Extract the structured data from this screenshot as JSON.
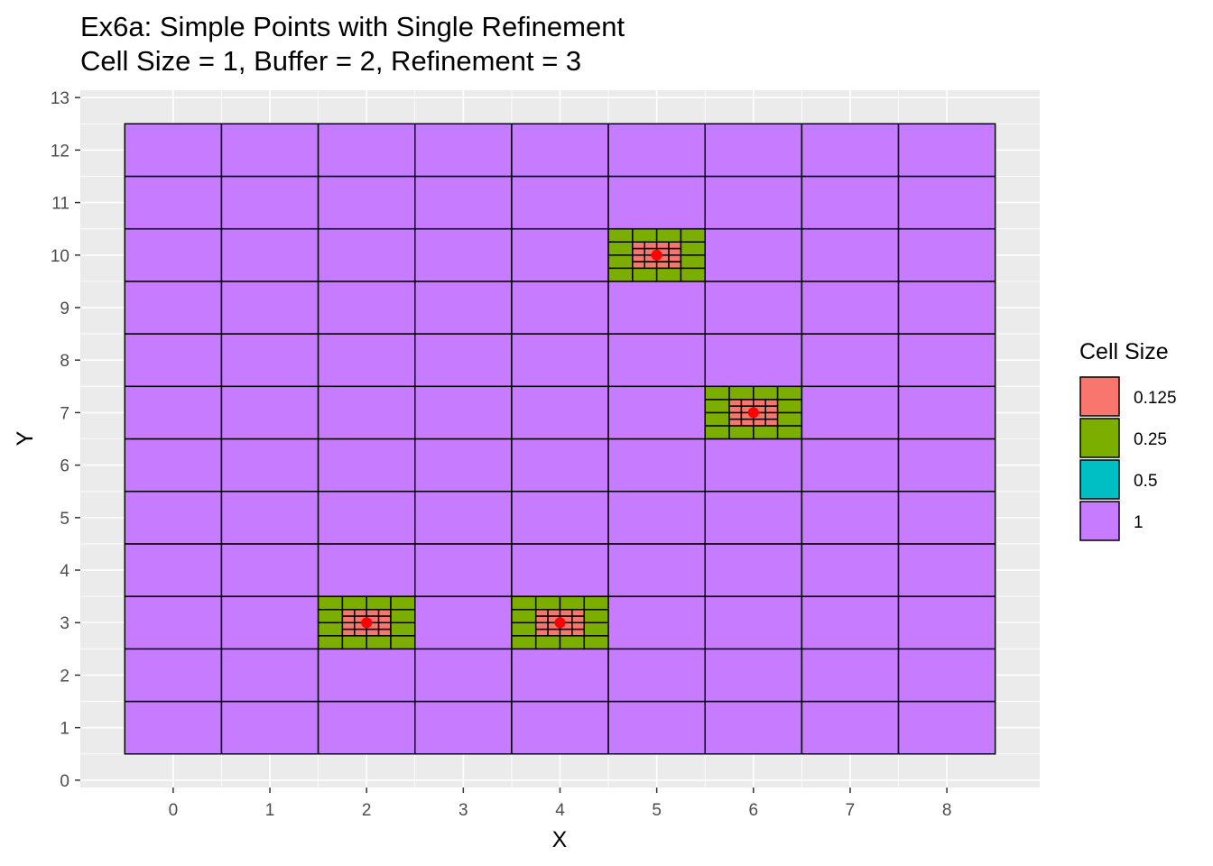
{
  "chart_data": {
    "type": "heatmap",
    "title": "Ex6a: Simple Points with Single Refinement",
    "subtitle": "Cell Size = 1, Buffer = 2, Refinement = 3",
    "xlabel": "X",
    "ylabel": "Y",
    "xlim": [
      -0.5,
      8.5
    ],
    "ylim": [
      0.5,
      12.5
    ],
    "x_ticks": [
      0,
      1,
      2,
      3,
      4,
      5,
      6,
      7,
      8
    ],
    "y_ticks": [
      0,
      1,
      2,
      3,
      4,
      5,
      6,
      7,
      8,
      9,
      10,
      11,
      12,
      13
    ],
    "grid": true,
    "base_cell_size": 1,
    "refinement_points": [
      {
        "x": 2,
        "y": 3
      },
      {
        "x": 4,
        "y": 3
      },
      {
        "x": 5,
        "y": 10
      },
      {
        "x": 6,
        "y": 7
      }
    ],
    "legend": {
      "title": "Cell Size",
      "position": "right",
      "entries": [
        {
          "label": "0.125",
          "value": 0.125,
          "color": "#F8766D"
        },
        {
          "label": "0.25",
          "value": 0.25,
          "color": "#7CAE00"
        },
        {
          "label": "0.5",
          "value": 0.5,
          "color": "#00BFC4"
        },
        {
          "label": "1",
          "value": 1,
          "color": "#C77CFF"
        }
      ]
    },
    "point_color": "#FF0000"
  }
}
